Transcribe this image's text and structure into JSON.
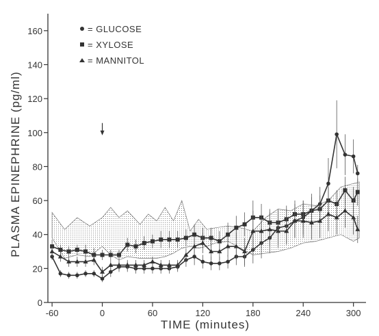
{
  "chart_data": {
    "type": "line",
    "xlabel": "TIME (minutes)",
    "ylabel": "PLASMA EPINEPHRINE (pg/ml)",
    "xlim": [
      -65,
      315
    ],
    "ylim": [
      0,
      170
    ],
    "xticks": [
      -60,
      0,
      60,
      120,
      180,
      240,
      300
    ],
    "xtick_labels": [
      "-60",
      "0",
      "60",
      "120",
      "180",
      "240",
      "300"
    ],
    "yticks": [
      0,
      20,
      40,
      60,
      80,
      100,
      120,
      140,
      160
    ],
    "ytick_labels": [
      "0",
      "20",
      "40",
      "60",
      "80",
      "100",
      "120",
      "140",
      "160"
    ],
    "arrow_x": 0,
    "arrow_y": 100,
    "grid": false,
    "legend_position": "top-left",
    "legend": [
      {
        "marker": "circle",
        "label": "= GLUCOSE"
      },
      {
        "marker": "square",
        "label": "= XYLOSE"
      },
      {
        "marker": "triangle",
        "label": "= MANNITOL"
      }
    ],
    "band": {
      "upper": [
        [
          -60,
          53
        ],
        [
          -45,
          43
        ],
        [
          -30,
          50
        ],
        [
          -15,
          45
        ],
        [
          0,
          50
        ],
        [
          10,
          56
        ],
        [
          20,
          50
        ],
        [
          30,
          54
        ],
        [
          45,
          46
        ],
        [
          55,
          52
        ],
        [
          65,
          48
        ],
        [
          75,
          56
        ],
        [
          85,
          48
        ],
        [
          95,
          60
        ],
        [
          105,
          42
        ],
        [
          115,
          49
        ],
        [
          125,
          43
        ],
        [
          135,
          44
        ],
        [
          150,
          45
        ],
        [
          165,
          44
        ],
        [
          180,
          42
        ],
        [
          195,
          50
        ],
        [
          210,
          55
        ],
        [
          225,
          54
        ],
        [
          240,
          58
        ],
        [
          255,
          57
        ],
        [
          270,
          60
        ],
        [
          285,
          68
        ],
        [
          300,
          70
        ],
        [
          307,
          71
        ]
      ],
      "lower": [
        [
          -60,
          38
        ],
        [
          -45,
          26
        ],
        [
          -30,
          28
        ],
        [
          -15,
          27
        ],
        [
          0,
          33
        ],
        [
          10,
          28
        ],
        [
          20,
          25
        ],
        [
          30,
          27
        ],
        [
          45,
          26
        ],
        [
          55,
          26
        ],
        [
          65,
          26
        ],
        [
          75,
          27
        ],
        [
          85,
          29
        ],
        [
          95,
          32
        ],
        [
          105,
          33
        ],
        [
          115,
          32
        ],
        [
          125,
          33
        ],
        [
          135,
          35
        ],
        [
          150,
          36
        ],
        [
          165,
          32
        ],
        [
          180,
          28
        ],
        [
          195,
          29
        ],
        [
          210,
          30
        ],
        [
          225,
          32
        ],
        [
          240,
          35
        ],
        [
          255,
          36
        ],
        [
          270,
          38
        ],
        [
          285,
          40
        ],
        [
          300,
          36
        ],
        [
          307,
          38
        ]
      ]
    },
    "series": [
      {
        "marker": "circle",
        "x": [
          -60,
          -50,
          -40,
          -30,
          -20,
          -10,
          0,
          10,
          20,
          30,
          40,
          50,
          60,
          70,
          80,
          90,
          100,
          110,
          120,
          130,
          140,
          150,
          160,
          170,
          180,
          190,
          200,
          210,
          220,
          230,
          240,
          250,
          260,
          270,
          280,
          290,
          300,
          305
        ],
        "y": [
          27,
          17,
          16,
          16,
          17,
          17,
          14,
          18,
          21,
          21,
          20,
          20,
          20,
          20,
          20,
          21,
          25,
          27,
          24,
          23,
          23,
          24,
          27,
          27,
          31,
          35,
          38,
          44,
          45,
          48,
          50,
          54,
          58,
          70,
          99,
          87,
          86,
          76
        ],
        "err": [
          2,
          2,
          2,
          2,
          2,
          2,
          2,
          3,
          3,
          3,
          3,
          3,
          3,
          3,
          3,
          3,
          4,
          5,
          4,
          4,
          4,
          4,
          5,
          6,
          8,
          9,
          9,
          10,
          10,
          10,
          10,
          10,
          10,
          15,
          20,
          12,
          10,
          5
        ]
      },
      {
        "marker": "square",
        "x": [
          -60,
          -50,
          -40,
          -30,
          -20,
          -10,
          0,
          10,
          20,
          30,
          40,
          50,
          60,
          70,
          80,
          90,
          100,
          110,
          120,
          130,
          140,
          150,
          160,
          170,
          180,
          190,
          200,
          210,
          220,
          230,
          240,
          250,
          260,
          270,
          280,
          290,
          300,
          305
        ],
        "y": [
          33,
          31,
          30,
          31,
          30,
          28,
          28,
          28,
          28,
          34,
          33,
          35,
          36,
          37,
          37,
          37,
          38,
          40,
          38,
          38,
          36,
          40,
          44,
          46,
          50,
          50,
          47,
          47,
          49,
          52,
          52,
          54,
          55,
          60,
          58,
          66,
          60,
          65
        ],
        "err": [
          4,
          3,
          3,
          3,
          4,
          4,
          3,
          3,
          3,
          4,
          4,
          4,
          4,
          5,
          5,
          5,
          5,
          6,
          6,
          6,
          6,
          7,
          7,
          7,
          10,
          8,
          8,
          8,
          8,
          8,
          8,
          8,
          8,
          8,
          8,
          8,
          8,
          8
        ]
      },
      {
        "marker": "triangle",
        "x": [
          -60,
          -50,
          -40,
          -30,
          -20,
          -10,
          0,
          10,
          20,
          30,
          40,
          50,
          60,
          70,
          80,
          90,
          100,
          110,
          120,
          130,
          140,
          150,
          160,
          170,
          180,
          190,
          200,
          210,
          220,
          230,
          240,
          250,
          260,
          270,
          280,
          290,
          300,
          305
        ],
        "y": [
          30,
          27,
          24,
          24,
          24,
          25,
          18,
          22,
          22,
          22,
          22,
          22,
          24,
          22,
          22,
          22,
          28,
          33,
          35,
          30,
          30,
          33,
          33,
          30,
          42,
          42,
          43,
          42,
          42,
          48,
          48,
          47,
          48,
          52,
          50,
          54,
          50,
          43
        ],
        "err": [
          3,
          3,
          3,
          3,
          3,
          3,
          3,
          3,
          3,
          3,
          3,
          3,
          3,
          3,
          3,
          3,
          4,
          5,
          6,
          5,
          5,
          6,
          8,
          8,
          12,
          10,
          10,
          10,
          8,
          10,
          10,
          10,
          10,
          10,
          10,
          10,
          10,
          8
        ]
      }
    ]
  }
}
